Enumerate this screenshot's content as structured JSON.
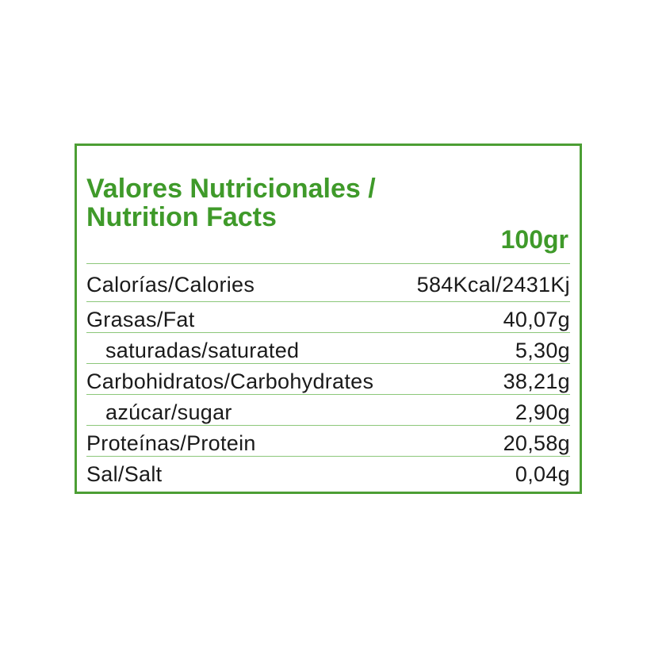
{
  "title_line1": "Valores Nutricionales /",
  "title_line2": "Nutrition Facts",
  "per_amount": "100gr",
  "rows": [
    {
      "label": "Calorías/Calories",
      "value": "584Kcal/2431Kj"
    },
    {
      "label": "Grasas/Fat",
      "value": "40,07g"
    },
    {
      "label": "saturadas/saturated",
      "value": "5,30g"
    },
    {
      "label": "Carbohidratos/Carbohydrates",
      "value": "38,21g"
    },
    {
      "label": "azúcar/sugar",
      "value": "2,90g"
    },
    {
      "label": "Proteínas/Protein",
      "value": "20,58g"
    },
    {
      "label": "Sal/Salt",
      "value": "0,04g"
    }
  ],
  "colors": {
    "accent": "#3f9a2a",
    "border": "#4c9e34",
    "divider": "#8cc77a",
    "text": "#1a1a1a"
  }
}
